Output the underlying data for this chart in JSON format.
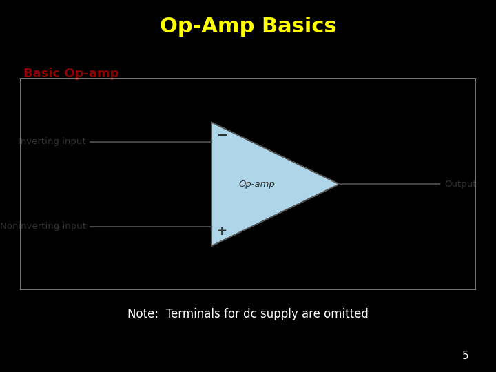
{
  "title": "Op-Amp Basics",
  "title_color": "#FFFF00",
  "title_fontsize": 22,
  "title_fontweight": "bold",
  "bg_color": "#000000",
  "subtitle_text": "Basic Op-amp",
  "subtitle_bg": "#8AAF50",
  "subtitle_color": "#8B0000",
  "subtitle_fontsize": 13,
  "subtitle_fontweight": "bold",
  "diagram_bg": "#F0F0F0",
  "triangle_color": "#AED6E8",
  "triangle_edge": "#555555",
  "label_inverting": "Inverting input",
  "label_noninverting": "Noninverting input",
  "label_opamp": "Op-amp",
  "label_output": "Output",
  "sign_minus": "−",
  "sign_plus": "+",
  "note_text": "Note:  Terminals for dc supply are omitted",
  "note_color": "#FFFFFF",
  "note_fontsize": 12,
  "page_number": "5",
  "page_number_color": "#FFFFFF",
  "page_number_fontsize": 11,
  "line_color": "#444444",
  "text_color": "#333333",
  "diagram_border": "#888888"
}
